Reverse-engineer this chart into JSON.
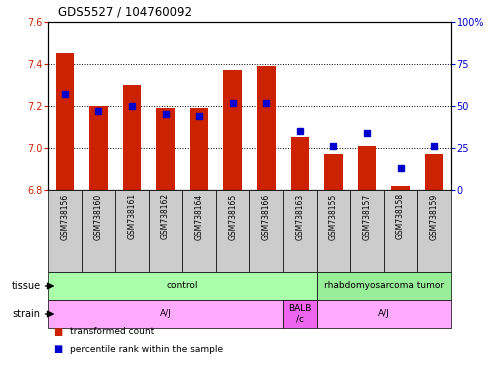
{
  "title": "GDS5527 / 104760092",
  "samples": [
    "GSM738156",
    "GSM738160",
    "GSM738161",
    "GSM738162",
    "GSM738164",
    "GSM738165",
    "GSM738166",
    "GSM738163",
    "GSM738155",
    "GSM738157",
    "GSM738158",
    "GSM738159"
  ],
  "bar_values": [
    7.45,
    7.2,
    7.3,
    7.19,
    7.19,
    7.37,
    7.39,
    7.05,
    6.97,
    7.01,
    6.82,
    6.97
  ],
  "percentile_values": [
    57,
    47,
    50,
    45,
    44,
    52,
    52,
    35,
    26,
    34,
    13,
    26
  ],
  "ylim_left": [
    6.8,
    7.6
  ],
  "ylim_right": [
    0,
    100
  ],
  "yticks_left": [
    6.8,
    7.0,
    7.2,
    7.4,
    7.6
  ],
  "yticks_right": [
    0,
    25,
    50,
    75,
    100
  ],
  "bar_color": "#cc2200",
  "dot_color": "#0000cc",
  "bar_bottom": 6.8,
  "tissue_spans": [
    {
      "text": "control",
      "start": 0,
      "end": 7,
      "color": "#aaffaa"
    },
    {
      "text": "rhabdomyosarcoma tumor",
      "start": 8,
      "end": 11,
      "color": "#99ee99"
    }
  ],
  "strain_spans": [
    {
      "text": "A/J",
      "start": 0,
      "end": 6,
      "color": "#ffaaff"
    },
    {
      "text": "BALB\n/c",
      "start": 7,
      "end": 7,
      "color": "#ee66ee"
    },
    {
      "text": "A/J",
      "start": 8,
      "end": 11,
      "color": "#ffaaff"
    }
  ],
  "legend_items": [
    {
      "label": "transformed count",
      "color": "#cc2200"
    },
    {
      "label": "percentile rank within the sample",
      "color": "#0000cc"
    }
  ],
  "bar_width": 0.55,
  "xlabel_bg": "#cccccc"
}
